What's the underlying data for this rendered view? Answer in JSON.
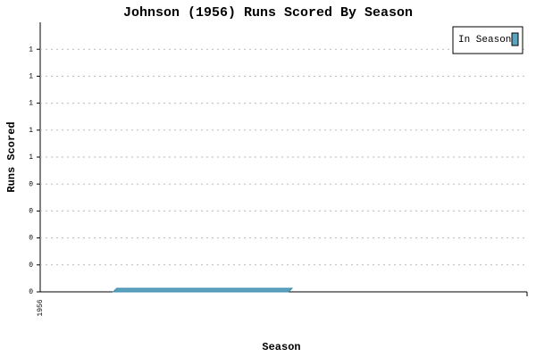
{
  "chart_data": {
    "type": "bar",
    "title": "Johnson (1956) Runs Scored By Season",
    "x_label": "Season",
    "y_label": "Runs Scored",
    "categories": [
      "1956"
    ],
    "series": [
      {
        "name": "In Season",
        "color": "#5ba3bf",
        "values": [
          0
        ]
      }
    ],
    "ylim": [
      0,
      1
    ],
    "yticks": [
      0,
      {
        "value": 0.1,
        "label": "0"
      },
      {
        "value": 0.2,
        "label": "0"
      },
      {
        "value": 0.3,
        "label": "0"
      },
      {
        "value": 0.4,
        "label": "0"
      },
      {
        "value": 0.5,
        "label": "1"
      },
      {
        "value": 0.6,
        "label": "1"
      },
      {
        "value": 0.7,
        "label": "1"
      },
      {
        "value": 0.8,
        "label": "1"
      },
      {
        "value": 0.9,
        "label": "1"
      }
    ],
    "grid": true,
    "legend": "top-right"
  }
}
